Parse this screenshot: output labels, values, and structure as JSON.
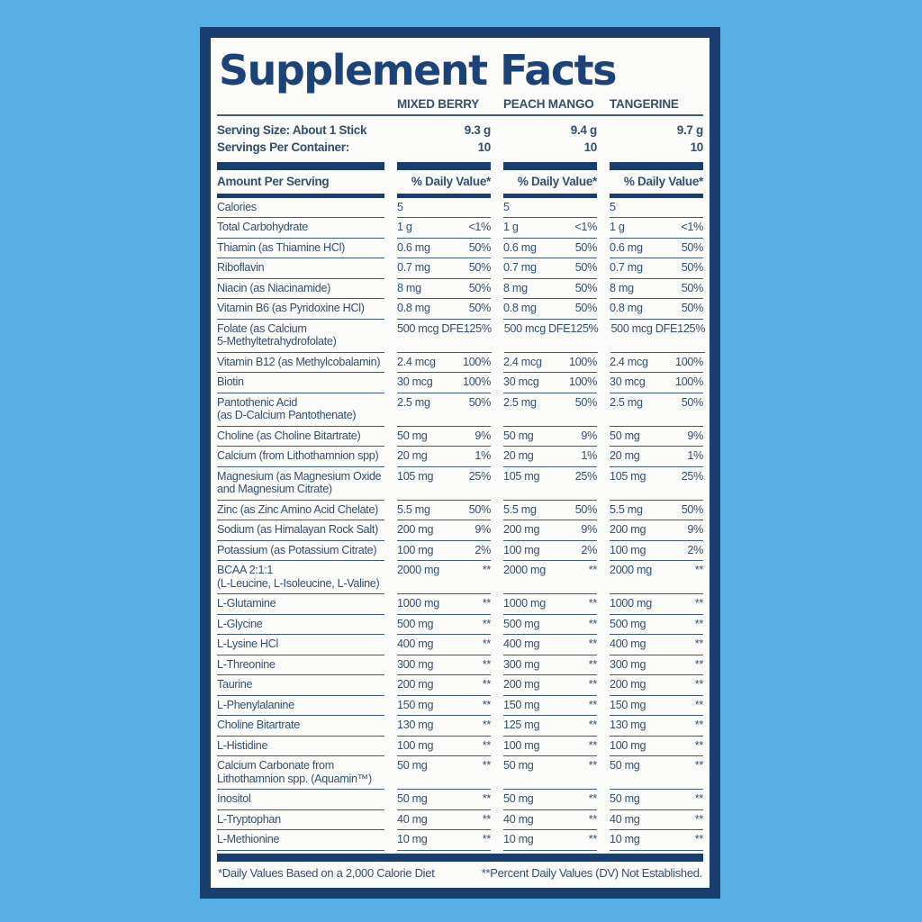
{
  "title": "Supplement Facts",
  "flavors": [
    "MIXED BERRY",
    "PEACH MANGO",
    "TANGERINE"
  ],
  "serving": {
    "size_label": "Serving Size: About 1 Stick",
    "servings_label": "Servings Per Container:",
    "sizes": [
      "9.3 g",
      "9.4 g",
      "9.7 g"
    ],
    "servings": [
      "10",
      "10",
      "10"
    ]
  },
  "headers": {
    "amount_per_serving": "Amount Per Serving",
    "daily_value": "% Daily Value*"
  },
  "rows": [
    {
      "label": "Calories",
      "label2": "",
      "amounts": [
        "5",
        "5",
        "5"
      ],
      "dvs": [
        "",
        "",
        ""
      ]
    },
    {
      "label": "Total Carbohydrate",
      "label2": "",
      "amounts": [
        "1 g",
        "1 g",
        "1 g"
      ],
      "dvs": [
        "<1%",
        "<1%",
        "<1%"
      ]
    },
    {
      "label": "Thiamin (as Thiamine HCl)",
      "label2": "",
      "amounts": [
        "0.6 mg",
        "0.6 mg",
        "0.6 mg"
      ],
      "dvs": [
        "50%",
        "50%",
        "50%"
      ]
    },
    {
      "label": "Riboflavin",
      "label2": "",
      "amounts": [
        "0.7 mg",
        "0.7 mg",
        "0.7 mg"
      ],
      "dvs": [
        "50%",
        "50%",
        "50%"
      ]
    },
    {
      "label": "Niacin (as Niacinamide)",
      "label2": "",
      "amounts": [
        "8 mg",
        "8 mg",
        "8 mg"
      ],
      "dvs": [
        "50%",
        "50%",
        "50%"
      ]
    },
    {
      "label": "Vitamin B6 (as Pyridoxine HCl)",
      "label2": "",
      "amounts": [
        "0.8 mg",
        "0.8 mg",
        "0.8 mg"
      ],
      "dvs": [
        "50%",
        "50%",
        "50%"
      ]
    },
    {
      "label": "Folate (as Calcium",
      "label2": "5-Methyltetrahydrofolate)",
      "amounts": [
        "500 mcg DFE",
        "500 mcg DFE",
        "500 mcg DFE"
      ],
      "dvs": [
        "125%",
        "125%",
        "125%"
      ]
    },
    {
      "label": "Vitamin B12 (as Methylcobalamin)",
      "label2": "",
      "amounts": [
        "2.4 mcg",
        "2.4 mcg",
        "2.4 mcg"
      ],
      "dvs": [
        "100%",
        "100%",
        "100%"
      ]
    },
    {
      "label": "Biotin",
      "label2": "",
      "amounts": [
        "30 mcg",
        "30 mcg",
        "30 mcg"
      ],
      "dvs": [
        "100%",
        "100%",
        "100%"
      ]
    },
    {
      "label": "Pantothenic Acid",
      "label2": "(as D-Calcium Pantothenate)",
      "amounts": [
        "2.5 mg",
        "2.5 mg",
        "2.5 mg"
      ],
      "dvs": [
        "50%",
        "50%",
        "50%"
      ]
    },
    {
      "label": "Choline (as Choline Bitartrate)",
      "label2": "",
      "amounts": [
        "50 mg",
        "50 mg",
        "50 mg"
      ],
      "dvs": [
        "9%",
        "9%",
        "9%"
      ]
    },
    {
      "label": "Calcium (from Lithothamnion spp)",
      "label2": "",
      "amounts": [
        "20 mg",
        "20 mg",
        "20 mg"
      ],
      "dvs": [
        "1%",
        "1%",
        "1%"
      ]
    },
    {
      "label": "Magnesium (as Magnesium Oxide",
      "label2": "and Magnesium Citrate)",
      "amounts": [
        "105 mg",
        "105 mg",
        "105 mg"
      ],
      "dvs": [
        "25%",
        "25%",
        "25%"
      ]
    },
    {
      "label": "Zinc (as Zinc Amino Acid Chelate)",
      "label2": "",
      "amounts": [
        "5.5 mg",
        "5.5 mg",
        "5.5 mg"
      ],
      "dvs": [
        "50%",
        "50%",
        "50%"
      ]
    },
    {
      "label": "Sodium (as Himalayan Rock Salt)",
      "label2": "",
      "amounts": [
        "200 mg",
        "200 mg",
        "200 mg"
      ],
      "dvs": [
        "9%",
        "9%",
        "9%"
      ]
    },
    {
      "label": "Potassium (as Potassium Citrate)",
      "label2": "",
      "amounts": [
        "100 mg",
        "100 mg",
        "100 mg"
      ],
      "dvs": [
        "2%",
        "2%",
        "2%"
      ]
    },
    {
      "label": "BCAA 2:1:1",
      "label2": "(L-Leucine, L-Isoleucine, L-Valine)",
      "amounts": [
        "2000 mg",
        "2000 mg",
        "2000 mg"
      ],
      "dvs": [
        "**",
        "**",
        "**"
      ]
    },
    {
      "label": "L-Glutamine",
      "label2": "",
      "amounts": [
        "1000 mg",
        "1000 mg",
        "1000 mg"
      ],
      "dvs": [
        "**",
        "**",
        "**"
      ]
    },
    {
      "label": "L-Glycine",
      "label2": "",
      "amounts": [
        "500 mg",
        "500 mg",
        "500 mg"
      ],
      "dvs": [
        "**",
        "**",
        "**"
      ]
    },
    {
      "label": "L-Lysine HCl",
      "label2": "",
      "amounts": [
        "400 mg",
        "400 mg",
        "400 mg"
      ],
      "dvs": [
        "**",
        "**",
        "**"
      ]
    },
    {
      "label": "L-Threonine",
      "label2": "",
      "amounts": [
        "300 mg",
        "300 mg",
        "300 mg"
      ],
      "dvs": [
        "**",
        "**",
        "**"
      ]
    },
    {
      "label": "Taurine",
      "label2": "",
      "amounts": [
        "200 mg",
        "200 mg",
        "200 mg"
      ],
      "dvs": [
        "**",
        "**",
        "**"
      ]
    },
    {
      "label": "L-Phenylalanine",
      "label2": "",
      "amounts": [
        "150 mg",
        "150 mg",
        "150 mg"
      ],
      "dvs": [
        "**",
        "**",
        "**"
      ]
    },
    {
      "label": "Choline Bitartrate",
      "label2": "",
      "amounts": [
        "130 mg",
        "125 mg",
        "130 mg"
      ],
      "dvs": [
        "**",
        "**",
        "**"
      ]
    },
    {
      "label": "L-Histidine",
      "label2": "",
      "amounts": [
        "100 mg",
        "100 mg",
        "100 mg"
      ],
      "dvs": [
        "**",
        "**",
        "**"
      ]
    },
    {
      "label": "Calcium Carbonate from",
      "label2": "Lithothamnion spp. (Aquamin™)",
      "amounts": [
        "50 mg",
        "50 mg",
        "50 mg"
      ],
      "dvs": [
        "**",
        "**",
        "**"
      ]
    },
    {
      "label": "Inositol",
      "label2": "",
      "amounts": [
        "50 mg",
        "50 mg",
        "50 mg"
      ],
      "dvs": [
        "**",
        "**",
        "**"
      ]
    },
    {
      "label": "L-Tryptophan",
      "label2": "",
      "amounts": [
        "40 mg",
        "40 mg",
        "40 mg"
      ],
      "dvs": [
        "**",
        "**",
        "**"
      ]
    },
    {
      "label": "L-Methionine",
      "label2": "",
      "amounts": [
        "10 mg",
        "10 mg",
        "10 mg"
      ],
      "dvs": [
        "**",
        "**",
        "**"
      ]
    }
  ],
  "footnotes": {
    "left": "*Daily Values Based on a 2,000 Calorie Diet",
    "right": "**Percent Daily Values (DV) Not Established."
  },
  "colors": {
    "navy": "#1A3F6E",
    "title_navy": "#1B4377",
    "text_navy": "#344F6E",
    "sky_blue": "#58AFE5",
    "panel_white": "#FBFBF9"
  }
}
